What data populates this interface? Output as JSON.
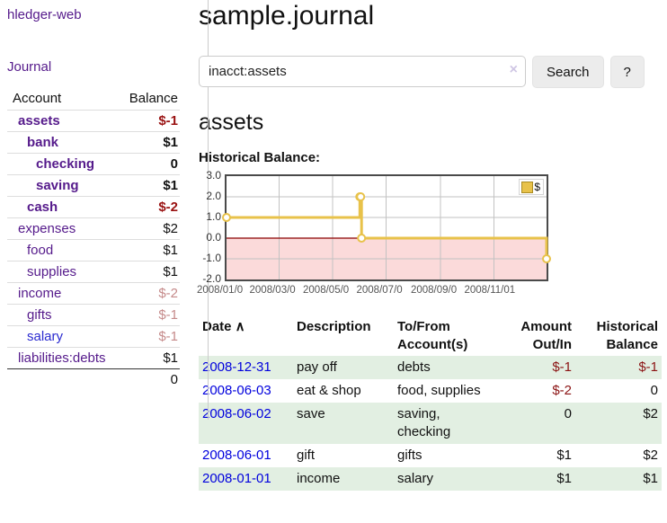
{
  "sidebar": {
    "brand": "hledger-web",
    "nav_journal": "Journal",
    "col_account": "Account",
    "col_balance": "Balance",
    "accounts": [
      {
        "name": "assets",
        "balance": "$-1",
        "depth": 1,
        "bold": true,
        "tone": "neg-strong",
        "link_tone": "purple"
      },
      {
        "name": "bank",
        "balance": "$1",
        "depth": 2,
        "bold": true,
        "tone": "normal",
        "link_tone": "purple"
      },
      {
        "name": "checking",
        "balance": "0",
        "depth": 3,
        "bold": true,
        "tone": "normal",
        "link_tone": "purple"
      },
      {
        "name": "saving",
        "balance": "$1",
        "depth": 3,
        "bold": true,
        "tone": "normal",
        "link_tone": "purple"
      },
      {
        "name": "cash",
        "balance": "$-2",
        "depth": 2,
        "bold": true,
        "tone": "neg-strong",
        "link_tone": "purple"
      },
      {
        "name": "expenses",
        "balance": "$2",
        "depth": 1,
        "bold": false,
        "tone": "normal",
        "link_tone": "purple"
      },
      {
        "name": "food",
        "balance": "$1",
        "depth": 2,
        "bold": false,
        "tone": "normal",
        "link_tone": "purple"
      },
      {
        "name": "supplies",
        "balance": "$1",
        "depth": 2,
        "bold": false,
        "tone": "normal",
        "link_tone": "purple"
      },
      {
        "name": "income",
        "balance": "$-2",
        "depth": 1,
        "bold": false,
        "tone": "neg-soft",
        "link_tone": "purple"
      },
      {
        "name": "gifts",
        "balance": "$-1",
        "depth": 2,
        "bold": false,
        "tone": "neg-soft",
        "link_tone": "purple"
      },
      {
        "name": "salary",
        "balance": "$-1",
        "depth": 2,
        "bold": false,
        "tone": "neg-soft",
        "link_tone": "blue"
      },
      {
        "name": "liabilities:debts",
        "balance": "$1",
        "depth": 1,
        "bold": false,
        "tone": "normal",
        "link_tone": "purple"
      }
    ],
    "total": "0"
  },
  "main": {
    "title": "sample.journal",
    "search": {
      "value": "inacct:assets",
      "clear_icon": "×",
      "button_label": "Search",
      "help_label": "?"
    },
    "account_heading": "assets",
    "chart_heading": "Historical Balance:"
  },
  "chart_data": {
    "type": "line",
    "step": true,
    "title": "Historical Balance",
    "legend": {
      "position": "top-right",
      "label": "$"
    },
    "series": [
      {
        "name": "$",
        "points": [
          {
            "date": "2008-01-01",
            "value": 1
          },
          {
            "date": "2008-06-01",
            "value": 2
          },
          {
            "date": "2008-06-02",
            "value": 2
          },
          {
            "date": "2008-06-03",
            "value": 0
          },
          {
            "date": "2008-12-31",
            "value": -1
          }
        ]
      }
    ],
    "ylim": [
      -2.0,
      3.0
    ],
    "y_ticks": [
      "3.0",
      "2.0",
      "1.0",
      "0.0",
      "-1.0",
      "-2.0"
    ],
    "x_ticks": [
      "2008/01/0",
      "2008/03/0",
      "2008/05/0",
      "2008/07/0",
      "2008/09/0",
      "2008/11/01"
    ],
    "x_tick_dates": [
      "2008-01-01",
      "2008-03-01",
      "2008-05-01",
      "2008-07-01",
      "2008-09-01",
      "2008-11-01"
    ],
    "grid": true,
    "line_color": "#e8c24a",
    "negative_region_color": "#fbdada",
    "zero_line_color": "#8b0000",
    "grid_color": "#c2c2c2"
  },
  "table": {
    "sort_icon": "∧",
    "headers": [
      {
        "key": "date",
        "label": "Date",
        "sorted": true,
        "sortable": true
      },
      {
        "key": "description",
        "label": "Description",
        "sorted": false,
        "sortable": false
      },
      {
        "key": "accounts",
        "label": "To/From Account(s)",
        "sorted": false,
        "sortable": false
      },
      {
        "key": "amount",
        "label": "Amount Out/In",
        "sorted": false,
        "sortable": false
      },
      {
        "key": "balance",
        "label": "Historical Balance",
        "sorted": false,
        "sortable": false
      }
    ],
    "rows": [
      {
        "date": "2008-12-31",
        "description": "pay off",
        "accounts": "debts",
        "amount": "$-1",
        "balance": "$-1",
        "amount_negative": true,
        "balance_negative": true
      },
      {
        "date": "2008-06-03",
        "description": "eat & shop",
        "accounts": "food, supplies",
        "amount": "$-2",
        "balance": "0",
        "amount_negative": true,
        "balance_negative": false
      },
      {
        "date": "2008-06-02",
        "description": "save",
        "accounts": "saving, checking",
        "amount": "0",
        "balance": "$2",
        "amount_negative": false,
        "balance_negative": false
      },
      {
        "date": "2008-06-01",
        "description": "gift",
        "accounts": "gifts",
        "amount": "$1",
        "balance": "$2",
        "amount_negative": false,
        "balance_negative": false
      },
      {
        "date": "2008-01-01",
        "description": "income",
        "accounts": "salary",
        "amount": "$1",
        "balance": "$1",
        "amount_negative": false,
        "balance_negative": false
      }
    ]
  },
  "colors": {
    "link_purple": "#551a8b",
    "link_blue": "#2a2ad0",
    "date_link_blue": "#0000dd",
    "negative_strong": "#991111",
    "negative_soft": "#c58a8a",
    "negative_table": "#8b1313",
    "row_stripe_green": "#e2efe2",
    "chart_line_gold": "#e8c24a",
    "chart_negative_fill": "#fbdada",
    "chart_zero_line": "#8b0000",
    "chart_border": "#4a4a4a"
  }
}
